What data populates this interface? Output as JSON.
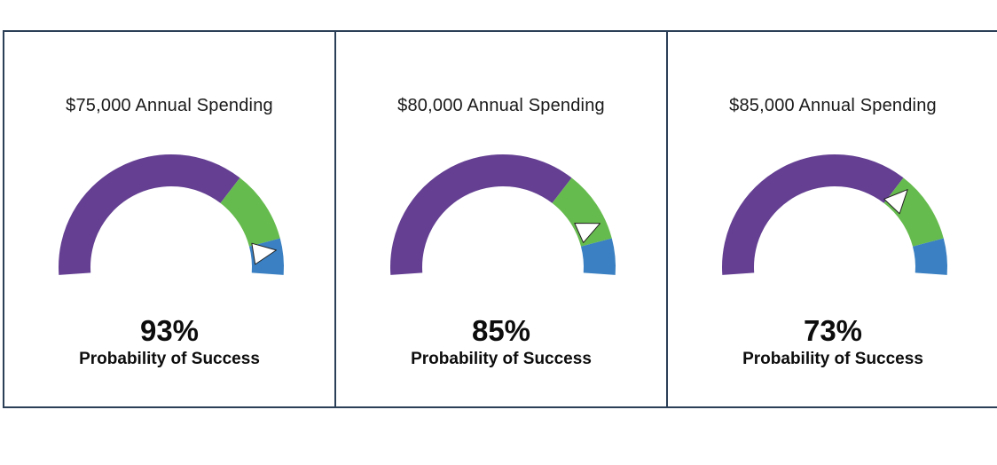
{
  "chart_data": [
    {
      "type": "gauge",
      "title": "$75,000 Annual Spending",
      "value": 93,
      "value_label": "93%",
      "caption": "Probability of Success",
      "range": [
        0,
        100
      ],
      "bands": [
        {
          "from": 0,
          "to": 70,
          "color": "#643f92"
        },
        {
          "from": 70,
          "to": 90,
          "color": "#66bb4e"
        },
        {
          "from": 90,
          "to": 100,
          "color": "#3a80c2"
        }
      ]
    },
    {
      "type": "gauge",
      "title": "$80,000 Annual Spending",
      "value": 85,
      "value_label": "85%",
      "caption": "Probability of Success",
      "range": [
        0,
        100
      ],
      "bands": [
        {
          "from": 0,
          "to": 70,
          "color": "#643f92"
        },
        {
          "from": 70,
          "to": 90,
          "color": "#66bb4e"
        },
        {
          "from": 90,
          "to": 100,
          "color": "#3a80c2"
        }
      ]
    },
    {
      "type": "gauge",
      "title": "$85,000 Annual Spending",
      "value": 73,
      "value_label": "73%",
      "caption": "Probability of Success",
      "range": [
        0,
        100
      ],
      "bands": [
        {
          "from": 0,
          "to": 70,
          "color": "#643f92"
        },
        {
          "from": 70,
          "to": 90,
          "color": "#66bb4e"
        },
        {
          "from": 90,
          "to": 100,
          "color": "#3a80c2"
        }
      ]
    }
  ]
}
